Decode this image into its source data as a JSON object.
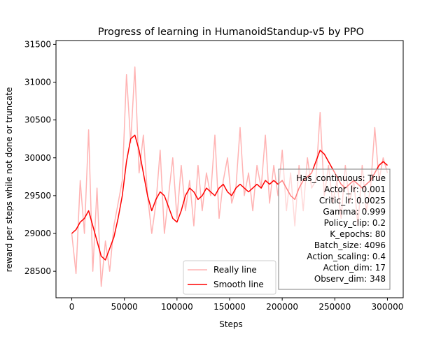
{
  "chart_data": {
    "type": "line",
    "title": "Progress of learning in HumanoidStandup-v5 by PPO",
    "xlabel": "Steps",
    "ylabel": "reward per steps while not done or truncate",
    "xlim": [
      -15000,
      315000
    ],
    "ylim": [
      28150,
      31550
    ],
    "x_ticks": [
      0,
      50000,
      100000,
      150000,
      200000,
      250000,
      300000
    ],
    "x_tick_labels": [
      "0",
      "50000",
      "100000",
      "150000",
      "200000",
      "250000",
      "300000"
    ],
    "y_ticks": [
      28500,
      29000,
      29500,
      30000,
      30500,
      31000,
      31500
    ],
    "y_tick_labels": [
      "28500",
      "29000",
      "29500",
      "30000",
      "30500",
      "31000",
      "31500"
    ],
    "grid": false,
    "legend": {
      "position": "lower-center",
      "entries": [
        "Really line",
        "Smooth line"
      ]
    },
    "info_box": {
      "position": "lower-right",
      "lines": [
        "Has_continuous: True",
        "Actor_lr: 0.001",
        "Critic_lr: 0.0025",
        "Gamma: 0.999",
        "Policy_clip: 0.2",
        "K_epochs: 80",
        "Batch_size: 4096",
        "Action_scaling: 0.4",
        "Action_dim: 17",
        "Observ_dim: 348"
      ]
    },
    "series": [
      {
        "name": "Really line",
        "color": "#ffb3b3",
        "x": [
          0,
          4000,
          8000,
          12000,
          16000,
          20000,
          24000,
          28000,
          32000,
          36000,
          40000,
          44000,
          48000,
          52000,
          56000,
          60000,
          64000,
          68000,
          72000,
          76000,
          80000,
          84000,
          88000,
          92000,
          96000,
          100000,
          104000,
          108000,
          112000,
          116000,
          120000,
          124000,
          128000,
          132000,
          136000,
          140000,
          144000,
          148000,
          152000,
          156000,
          160000,
          164000,
          168000,
          172000,
          176000,
          180000,
          184000,
          188000,
          192000,
          196000,
          200000,
          204000,
          208000,
          212000,
          216000,
          220000,
          224000,
          228000,
          232000,
          236000,
          240000,
          244000,
          248000,
          252000,
          256000,
          260000,
          264000,
          268000,
          272000,
          276000,
          280000,
          284000,
          288000,
          292000,
          296000,
          300000
        ],
        "values": [
          29000,
          28470,
          29700,
          29000,
          30370,
          28500,
          29600,
          28300,
          28900,
          28500,
          29100,
          29400,
          29700,
          31100,
          30200,
          31200,
          29800,
          30300,
          29500,
          29000,
          29400,
          30100,
          29000,
          29500,
          30000,
          29200,
          29900,
          29300,
          29700,
          29100,
          29900,
          29300,
          29800,
          29500,
          30300,
          29200,
          29700,
          30000,
          29400,
          29600,
          30400,
          29500,
          29800,
          29300,
          29900,
          29600,
          30300,
          29400,
          29900,
          29500,
          30100,
          29300,
          29800,
          29100,
          29900,
          29300,
          30000,
          29600,
          29700,
          30600,
          29500,
          29900,
          29400,
          29700,
          29200,
          29900,
          29400,
          29700,
          29100,
          29900,
          29300,
          29600,
          30400,
          29700,
          30000,
          29800
        ]
      },
      {
        "name": "Smooth line",
        "color": "#ff0000",
        "x": [
          0,
          4000,
          8000,
          12000,
          16000,
          20000,
          24000,
          28000,
          32000,
          36000,
          40000,
          44000,
          48000,
          52000,
          56000,
          60000,
          64000,
          68000,
          72000,
          76000,
          80000,
          84000,
          88000,
          92000,
          96000,
          100000,
          104000,
          108000,
          112000,
          116000,
          120000,
          124000,
          128000,
          132000,
          136000,
          140000,
          144000,
          148000,
          152000,
          156000,
          160000,
          164000,
          168000,
          172000,
          176000,
          180000,
          184000,
          188000,
          192000,
          196000,
          200000,
          204000,
          208000,
          212000,
          216000,
          220000,
          224000,
          228000,
          232000,
          236000,
          240000,
          244000,
          248000,
          252000,
          256000,
          260000,
          264000,
          268000,
          272000,
          276000,
          280000,
          284000,
          288000,
          292000,
          296000,
          300000
        ],
        "values": [
          29000,
          29050,
          29150,
          29200,
          29300,
          29100,
          28900,
          28700,
          28650,
          28800,
          28950,
          29200,
          29500,
          29950,
          30250,
          30300,
          30100,
          29800,
          29500,
          29300,
          29450,
          29550,
          29500,
          29350,
          29200,
          29150,
          29300,
          29500,
          29600,
          29550,
          29450,
          29500,
          29600,
          29550,
          29500,
          29600,
          29650,
          29550,
          29500,
          29600,
          29650,
          29600,
          29550,
          29600,
          29650,
          29600,
          29700,
          29650,
          29700,
          29650,
          29700,
          29600,
          29500,
          29450,
          29600,
          29700,
          29750,
          29800,
          29950,
          30100,
          30050,
          29950,
          29850,
          29750,
          29650,
          29600,
          29650,
          29700,
          29650,
          29600,
          29650,
          29700,
          29800,
          29900,
          29950,
          29900
        ]
      }
    ]
  }
}
